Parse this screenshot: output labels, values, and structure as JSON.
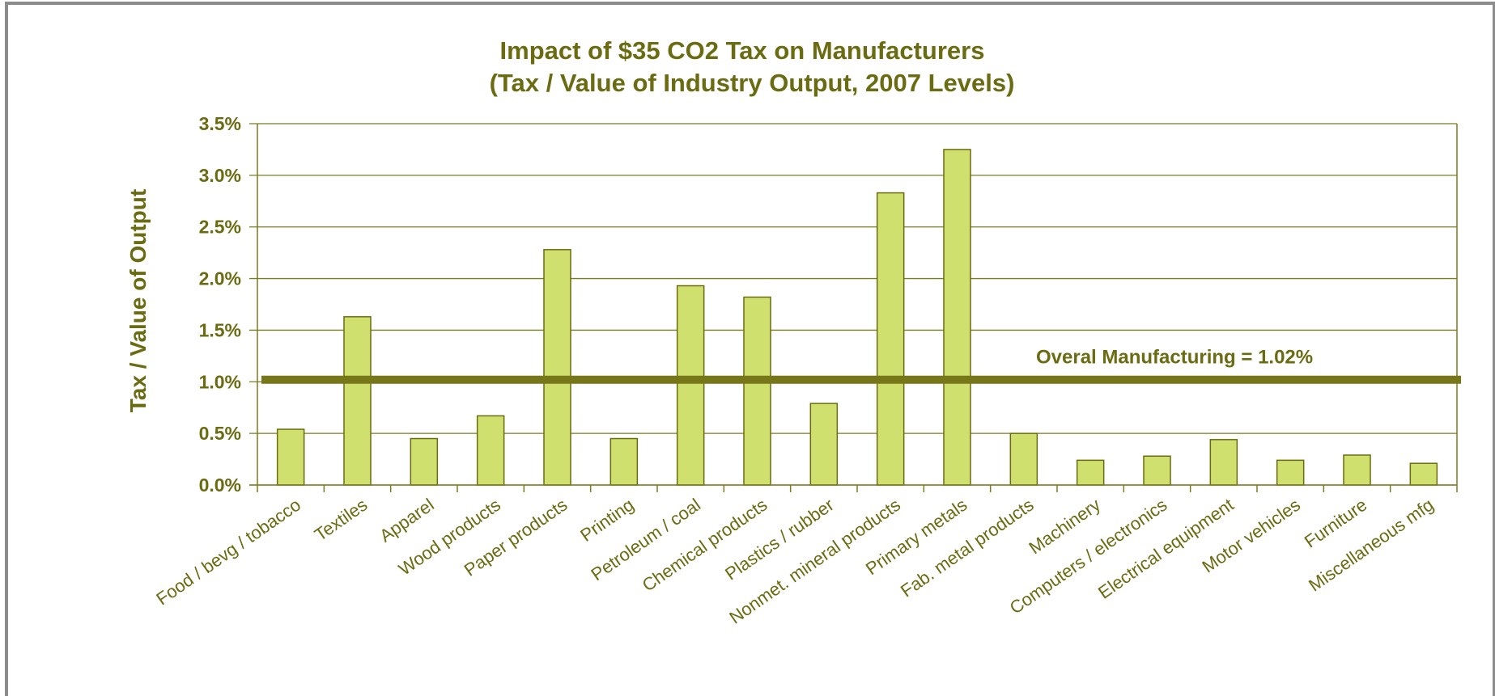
{
  "chart_data": {
    "type": "bar",
    "title": "Impact of $35 CO2 Tax on Manufacturers",
    "subtitle": "(Tax / Value of Industry Output, 2007 Levels)",
    "ylabel": "Tax / Value of Output",
    "xlabel": "",
    "ylim": [
      0,
      3.5
    ],
    "y_ticks": [
      "0.0%",
      "0.5%",
      "1.0%",
      "1.5%",
      "2.0%",
      "2.5%",
      "3.0%",
      "3.5%"
    ],
    "grid": true,
    "categories": [
      "Food / bevg / tobacco",
      "Textiles",
      "Apparel",
      "Wood products",
      "Paper products",
      "Printing",
      "Petroleum / coal",
      "Chemical products",
      "Plastics / rubber",
      "Nonmet. mineral products",
      "Primary metals",
      "Fab. metal products",
      "Machinery",
      "Computers / electronics",
      "Electrical equipment",
      "Motor vehicles",
      "Furniture",
      "Miscellaneous mfg"
    ],
    "values": [
      0.54,
      1.63,
      0.45,
      0.67,
      2.28,
      0.45,
      1.93,
      1.82,
      0.79,
      2.83,
      3.25,
      0.5,
      0.24,
      0.28,
      0.44,
      0.24,
      0.29,
      0.21
    ],
    "unit": "%",
    "reference_line": {
      "value": 1.02,
      "label": "Overal Manufacturing = 1.02%",
      "color": "#77771a"
    },
    "colors": {
      "bar_fill": "#d0e06e",
      "text": "#6b6b12"
    }
  }
}
